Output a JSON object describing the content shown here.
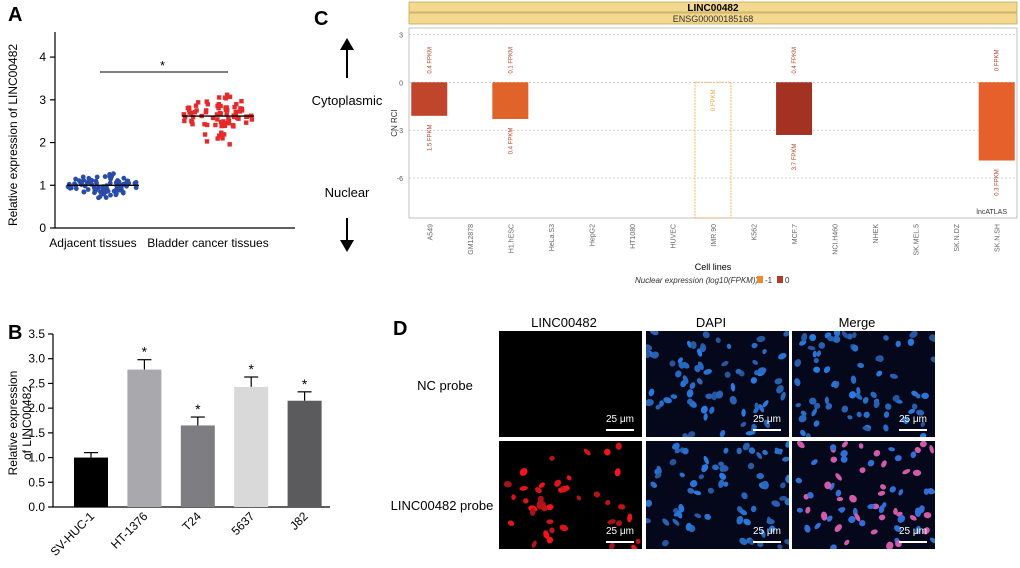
{
  "panels": {
    "a": "A",
    "b": "B",
    "c": "C",
    "d": "D"
  },
  "chart_data": [
    {
      "type": "scatter",
      "panel": "A",
      "title": "",
      "xlabel": "",
      "ylabel": "Relative expression of LINC00482",
      "categories": [
        "Adjacent tissues",
        "Bladder cancer tissues"
      ],
      "series": [
        {
          "name": "Adjacent tissues",
          "color": "#2a4ba8",
          "center": 1.0,
          "spread": 0.38,
          "n": 85
        },
        {
          "name": "Bladder cancer tissues",
          "color": "#e42a2a",
          "center": 2.62,
          "spread": 0.78,
          "n": 85
        }
      ],
      "yticks": [
        0,
        1,
        2,
        3,
        4
      ],
      "ylim": [
        0,
        4.4
      ],
      "significance": "*"
    },
    {
      "type": "bar",
      "panel": "B",
      "title": "",
      "xlabel": "",
      "ylabel": "Relative expression of LINC00482",
      "ylabel_lines": [
        "Relative expression",
        "of LINC00482"
      ],
      "categories": [
        "SV-HUC-1",
        "HT-1376",
        "T24",
        "5637",
        "J82"
      ],
      "values": [
        1.0,
        2.78,
        1.65,
        2.43,
        2.15
      ],
      "errors": [
        0.1,
        0.2,
        0.17,
        0.2,
        0.18
      ],
      "colors": [
        "#000000",
        "#a8a8ad",
        "#7d7d82",
        "#d9d9d9",
        "#5b5b5e"
      ],
      "significance": [
        "",
        "*",
        "*",
        "*",
        "*"
      ],
      "yticks": [
        0.0,
        0.5,
        1.0,
        1.5,
        2.0,
        2.5,
        3.0,
        3.5
      ],
      "ylim": [
        0,
        3.5
      ]
    },
    {
      "type": "bar",
      "panel": "C",
      "title": "LINC00482",
      "subtitle": "ENSG00000185168",
      "xlabel": "Cell lines",
      "ylabel": "CN RCI",
      "categories": [
        "A549",
        "GM12878",
        "H1.hESC",
        "HeLa.S3",
        "HepG2",
        "HT1080",
        "HUVEC",
        "IMR.90",
        "K562",
        "MCF.7",
        "NCI.H460",
        "NHEK",
        "SK.MEL.5",
        "SK.N.DZ",
        "SK.N.SH"
      ],
      "values": [
        -2.1,
        null,
        -2.3,
        null,
        null,
        null,
        null,
        0,
        null,
        -3.3,
        null,
        null,
        null,
        null,
        -4.9
      ],
      "top_labels": [
        "0.4 FPKM",
        "",
        "0.1 FPKM",
        "",
        "",
        "",
        "",
        "0 FPKM",
        "",
        "0.4 FPKM",
        "",
        "",
        "",
        "",
        "0 FPKM"
      ],
      "bottom_labels": [
        "1.5 FPKM",
        "",
        "0.4 FPKM",
        "",
        "",
        "",
        "",
        "",
        "",
        "3.7 FPKM",
        "",
        "",
        "",
        "",
        "0.3 FPKM"
      ],
      "colors": [
        "#c0452a",
        "",
        "#e0642a",
        "",
        "",
        "",
        "",
        "#f0a63a",
        "",
        "#a33222",
        "",
        "",
        "",
        "",
        "#e6602c"
      ],
      "yticks": [
        3,
        0,
        -3,
        -6
      ],
      "ylim": [
        -8.5,
        3.4
      ],
      "legend_title": "Nuclear expression (log10(FPKM))",
      "legend_items": [
        {
          "label": "-1",
          "color": "#ef8a2a"
        },
        {
          "label": "0",
          "color": "#b53c22"
        }
      ],
      "watermark": "lncATLAS",
      "side_labels": {
        "top": "Cytoplasmic",
        "bottom": "Nuclear"
      }
    }
  ],
  "panel_d": {
    "columns": [
      "LINC00482",
      "DAPI",
      "Merge"
    ],
    "rows": [
      "NC probe",
      "LINC00482 probe"
    ],
    "scale_bar": "25 μm"
  }
}
